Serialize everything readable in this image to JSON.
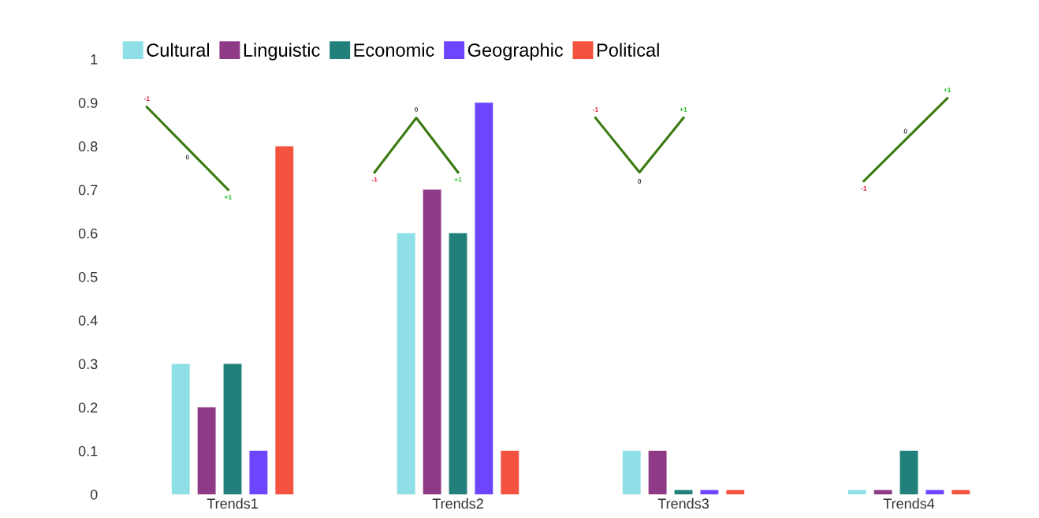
{
  "chart_data": {
    "type": "bar",
    "categories": [
      "Trends1",
      "Trends2",
      "Trends3",
      "Trends4"
    ],
    "series": [
      {
        "name": "Cultural",
        "color": "#8fe0e6",
        "values": [
          0.3,
          0.6,
          0.1,
          0.01
        ]
      },
      {
        "name": "Linguistic",
        "color": "#8e3a87",
        "values": [
          0.2,
          0.7,
          0.1,
          0.01
        ]
      },
      {
        "name": "Economic",
        "color": "#21807a",
        "values": [
          0.3,
          0.6,
          0.01,
          0.1
        ]
      },
      {
        "name": "Geographic",
        "color": "#6e45ff",
        "values": [
          0.1,
          0.9,
          0.01,
          0.01
        ]
      },
      {
        "name": "Political",
        "color": "#f45340",
        "values": [
          0.8,
          0.1,
          0.01,
          0.01
        ]
      }
    ],
    "ylim": [
      0,
      1
    ],
    "yticks": [
      0,
      0.1,
      0.2,
      0.3,
      0.4,
      0.5,
      0.6,
      0.7,
      0.8,
      0.9,
      1
    ],
    "grid": false,
    "legend": "top left",
    "annotations": [
      "-1",
      "0",
      "+1",
      "-1",
      "0",
      "+1",
      "-1",
      "0",
      "+1",
      "-1",
      "0",
      "+1"
    ]
  }
}
